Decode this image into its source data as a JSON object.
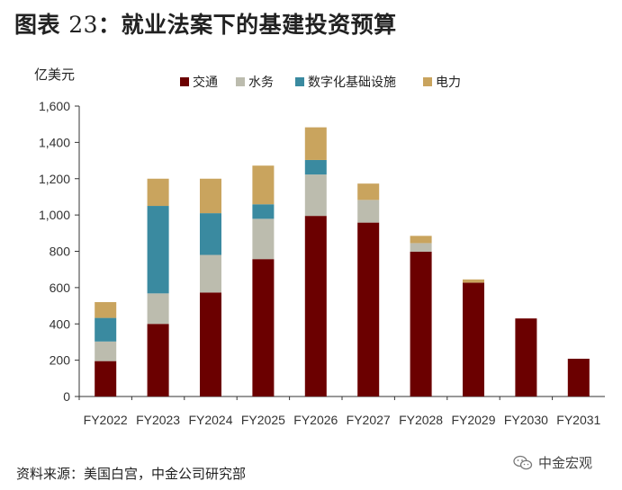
{
  "title_prefix": "图表",
  "title_num": "23",
  "title_sep": "：",
  "title_text": "就业法案下的基建投资预算",
  "source": "资料来源：美国白宫，中金公司研究部",
  "watermark": "中金宏观",
  "chart_data": {
    "type": "bar",
    "stacked": true,
    "unit_label": "亿美元",
    "categories": [
      "FY2022",
      "FY2023",
      "FY2024",
      "FY2025",
      "FY2026",
      "FY2027",
      "FY2028",
      "FY2029",
      "FY2030",
      "FY2031"
    ],
    "series": [
      {
        "name": "交通",
        "color": "#6b0000",
        "values": [
          195,
          400,
          573,
          757,
          995,
          958,
          798,
          627,
          430,
          208
        ]
      },
      {
        "name": "水务",
        "color": "#bcbcae",
        "values": [
          108,
          168,
          207,
          222,
          228,
          125,
          47,
          0,
          0,
          0
        ]
      },
      {
        "name": "数字化基础设施",
        "color": "#3a8aa0",
        "values": [
          130,
          482,
          230,
          80,
          80,
          0,
          0,
          0,
          0,
          0
        ]
      },
      {
        "name": "电力",
        "color": "#c9a45e",
        "values": [
          87,
          150,
          190,
          213,
          180,
          90,
          40,
          18,
          0,
          0
        ]
      }
    ],
    "yticks": [
      0,
      200,
      400,
      600,
      800,
      1000,
      1200,
      1400,
      1600
    ],
    "ytick_labels": [
      "0",
      "200",
      "400",
      "600",
      "800",
      "1,000",
      "1,200",
      "1,400",
      "1,600"
    ],
    "ylim": [
      0,
      1600
    ],
    "legend_position": "top",
    "grid": false
  }
}
